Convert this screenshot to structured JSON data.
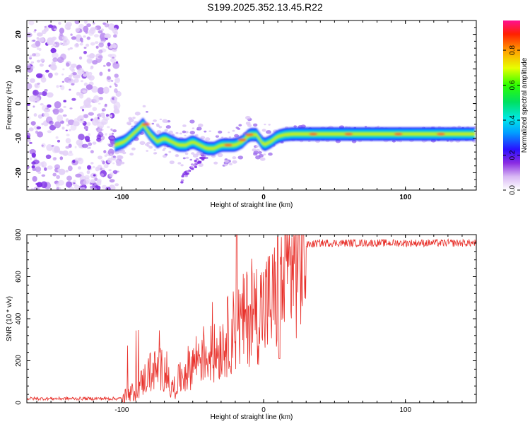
{
  "title": "S199.2025.352.13.45.R22",
  "chart_data": [
    {
      "type": "heatmap",
      "name": "spectrogram",
      "xlabel": "Height of straight line (km)",
      "ylabel": "Frequency (Hz)",
      "xlim": [
        -167,
        150
      ],
      "ylim": [
        -25,
        24
      ],
      "xticks": [
        -100,
        0,
        100
      ],
      "yticks": [
        -20,
        -10,
        0,
        10,
        20
      ],
      "grid": false,
      "colorbar": {
        "label": "Normalized spectral amplitude",
        "range": [
          0,
          0.97
        ],
        "ticks": [
          0.0,
          0.2,
          0.4,
          0.6,
          0.8
        ]
      },
      "ridge": {
        "x": [
          -105,
          -98,
          -90,
          -85,
          -80,
          -75,
          -70,
          -65,
          -60,
          -55,
          -50,
          -45,
          -40,
          -35,
          -30,
          -25,
          -20,
          -15,
          -10,
          -5,
          0,
          5,
          10,
          15,
          20,
          30,
          50,
          75,
          100,
          125,
          150
        ],
        "y": [
          -12,
          -11,
          -8,
          -6,
          -9,
          -11,
          -10,
          -11,
          -12,
          -12,
          -11,
          -12,
          -13,
          -13,
          -12,
          -12,
          -12,
          -11,
          -9,
          -9,
          -12,
          -11,
          -9.5,
          -9,
          -8.8,
          -8.8,
          -8.8,
          -8.8,
          -8.8,
          -8.8,
          -8.8
        ]
      }
    },
    {
      "type": "line",
      "name": "snr",
      "xlabel": "Height of straight line (km)",
      "ylabel": "SNR (10 * v/v)",
      "xlim": [
        -167,
        150
      ],
      "ylim": [
        0,
        800
      ],
      "xticks": [
        -100,
        0,
        100
      ],
      "yticks": [
        0,
        200,
        400,
        600,
        800
      ],
      "grid": false,
      "color": "#e8302a",
      "trend": {
        "x": [
          -167,
          -100,
          -90,
          -80,
          -70,
          -65,
          -55,
          -45,
          -35,
          -25,
          -15,
          -10,
          0,
          10,
          20,
          30,
          40,
          60,
          100,
          150
        ],
        "y": [
          20,
          20,
          60,
          150,
          160,
          60,
          150,
          230,
          230,
          320,
          380,
          420,
          450,
          500,
          660,
          750,
          760,
          760,
          760,
          760
        ]
      }
    }
  ]
}
